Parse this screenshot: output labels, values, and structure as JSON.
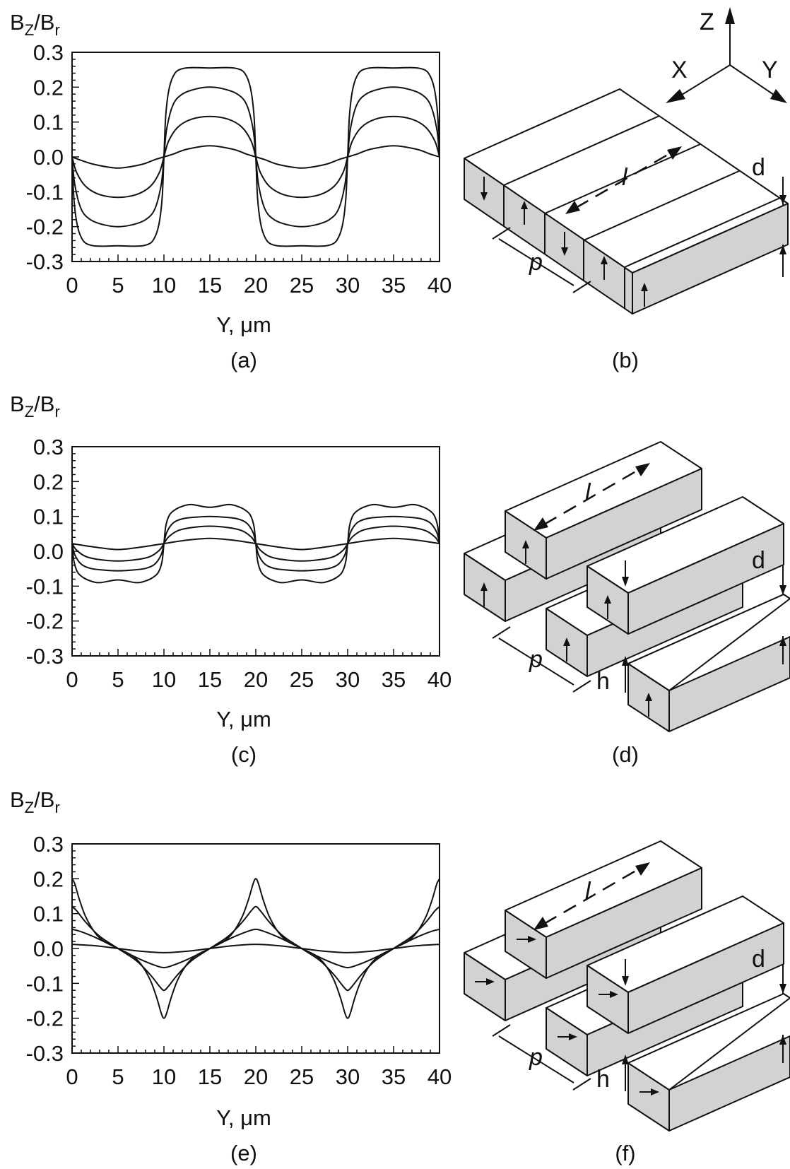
{
  "figure": {
    "panels": [
      {
        "tag": "(a)",
        "ylabel_main": "B",
        "ylabel_sub1": "Z",
        "ylabel_mid": "/B",
        "ylabel_sub2": "r",
        "xlabel": "Y, μm"
      },
      {
        "tag": "(c)",
        "ylabel_main": "B",
        "ylabel_sub1": "Z",
        "ylabel_mid": "/B",
        "ylabel_sub2": "r",
        "xlabel": "Y, μm"
      },
      {
        "tag": "(e)",
        "ylabel_main": "B",
        "ylabel_sub1": "Z",
        "ylabel_mid": "/B",
        "ylabel_sub2": "r",
        "xlabel": "Y, μm"
      }
    ],
    "diagrams": [
      {
        "tag": "(b)",
        "axes": {
          "z": "Z",
          "x": "X",
          "y": "Y"
        },
        "labels": {
          "l": "l",
          "p": "p",
          "d": "d"
        }
      },
      {
        "tag": "(d)",
        "labels": {
          "l": "l",
          "p": "p",
          "d": "d",
          "h": "h"
        }
      },
      {
        "tag": "(f)",
        "labels": {
          "l": "l",
          "p": "p",
          "d": "d",
          "h": "h"
        }
      }
    ]
  },
  "chart_data": [
    {
      "type": "line",
      "panel": "(a)",
      "xlabel": "Y, μm",
      "ylabel": "BZ/Br",
      "xlim": [
        0,
        40
      ],
      "ylim": [
        -0.3,
        0.3
      ],
      "xticks": [
        "0",
        "5",
        "10",
        "15",
        "20",
        "25",
        "30",
        "35",
        "40"
      ],
      "yticks": [
        "0.3",
        "0.2",
        "0.1",
        "0.0",
        "-0.1",
        "-0.2",
        "-0.3"
      ],
      "series": [
        {
          "x": [
            0,
            1,
            2.5,
            5,
            7.5,
            9,
            10,
            11,
            12.5,
            15,
            17.5,
            19,
            20,
            21,
            22.5,
            25,
            27.5,
            29,
            30,
            31,
            32.5,
            35,
            37.5,
            39,
            40
          ],
          "y": [
            0,
            -0.01,
            -0.022,
            -0.032,
            -0.022,
            -0.008,
            0,
            0.008,
            0.022,
            0.032,
            0.022,
            0.008,
            0,
            -0.008,
            -0.022,
            -0.032,
            -0.022,
            -0.008,
            0,
            0.008,
            0.022,
            0.032,
            0.022,
            0.008,
            0
          ]
        },
        {
          "x": [
            0,
            0.5,
            1.5,
            3,
            5,
            7,
            8.5,
            9.5,
            10,
            10.5,
            11.5,
            13,
            15,
            17,
            18.5,
            19.5,
            20,
            20.5,
            21.5,
            23,
            25,
            27,
            28.5,
            29.5,
            30,
            30.5,
            31.5,
            33,
            35,
            37,
            38.5,
            39.5,
            40
          ],
          "y": [
            0,
            -0.045,
            -0.085,
            -0.108,
            -0.116,
            -0.108,
            -0.085,
            -0.045,
            0,
            0.045,
            0.085,
            0.108,
            0.116,
            0.108,
            0.085,
            0.045,
            0,
            -0.045,
            -0.085,
            -0.108,
            -0.116,
            -0.108,
            -0.085,
            -0.045,
            0,
            0.045,
            0.085,
            0.108,
            0.116,
            0.108,
            0.085,
            0.045,
            0
          ]
        },
        {
          "x": [
            0,
            0.3,
            1,
            2,
            3.5,
            5,
            6.5,
            8,
            9,
            9.7,
            10,
            10.3,
            11,
            12,
            13.5,
            15,
            16.5,
            18,
            19,
            19.7,
            20,
            20.3,
            21,
            22,
            23.5,
            25,
            26.5,
            28,
            29,
            29.7,
            30,
            30.3,
            31,
            32,
            33.5,
            35,
            36.5,
            38,
            39,
            39.7,
            40
          ],
          "y": [
            0,
            -0.08,
            -0.15,
            -0.18,
            -0.195,
            -0.2,
            -0.195,
            -0.18,
            -0.15,
            -0.08,
            0,
            0.08,
            0.15,
            0.18,
            0.195,
            0.2,
            0.195,
            0.18,
            0.15,
            0.08,
            0,
            -0.08,
            -0.15,
            -0.18,
            -0.195,
            -0.2,
            -0.195,
            -0.18,
            -0.15,
            -0.08,
            0,
            0.08,
            0.15,
            0.18,
            0.195,
            0.2,
            0.195,
            0.18,
            0.15,
            0.08,
            0
          ]
        },
        {
          "x": [
            0,
            0.2,
            0.6,
            1.2,
            2,
            3,
            5,
            7,
            8,
            8.8,
            9.4,
            9.8,
            10,
            10.2,
            10.6,
            11.2,
            12,
            13,
            15,
            17,
            18,
            18.8,
            19.4,
            19.8,
            20,
            20.2,
            20.6,
            21.2,
            22,
            23,
            25,
            27,
            28,
            28.8,
            29.4,
            29.8,
            30,
            30.2,
            30.6,
            31.2,
            32,
            33,
            35,
            37,
            38,
            38.8,
            39.4,
            39.8,
            40
          ],
          "y": [
            0,
            -0.12,
            -0.2,
            -0.24,
            -0.253,
            -0.256,
            -0.255,
            -0.256,
            -0.253,
            -0.24,
            -0.2,
            -0.12,
            0,
            0.12,
            0.2,
            0.24,
            0.253,
            0.256,
            0.255,
            0.256,
            0.253,
            0.24,
            0.2,
            0.12,
            0,
            -0.12,
            -0.2,
            -0.24,
            -0.253,
            -0.256,
            -0.255,
            -0.256,
            -0.253,
            -0.24,
            -0.2,
            -0.12,
            0,
            0.12,
            0.2,
            0.24,
            0.253,
            0.256,
            0.255,
            0.256,
            0.253,
            0.24,
            0.2,
            0.12,
            0
          ]
        }
      ]
    },
    {
      "type": "line",
      "panel": "(c)",
      "xlabel": "Y, μm",
      "ylabel": "BZ/Br",
      "xlim": [
        0,
        40
      ],
      "ylim": [
        -0.3,
        0.3
      ],
      "xticks": [
        "0",
        "5",
        "10",
        "15",
        "20",
        "25",
        "30",
        "35",
        "40"
      ],
      "yticks": [
        "0.3",
        "0.2",
        "0.1",
        "0.0",
        "-0.1",
        "-0.2",
        "-0.3"
      ],
      "series": [
        {
          "x": [
            0,
            2.5,
            5,
            7.5,
            10,
            12.5,
            15,
            17.5,
            20,
            22.5,
            25,
            27.5,
            30,
            32.5,
            35,
            37.5,
            40
          ],
          "y": [
            0.022,
            0.012,
            0.005,
            0.012,
            0.022,
            0.032,
            0.037,
            0.032,
            0.022,
            0.012,
            0.005,
            0.012,
            0.022,
            0.032,
            0.037,
            0.032,
            0.022
          ]
        },
        {
          "x": [
            0,
            0.5,
            1.5,
            3,
            5,
            7,
            8.5,
            9.5,
            10,
            10.5,
            11.5,
            13,
            15,
            17,
            18.5,
            19.5,
            20,
            20.5,
            21.5,
            23,
            25,
            27,
            28.5,
            29.5,
            30,
            30.5,
            31.5,
            33,
            35,
            37,
            38.5,
            39.5,
            40
          ],
          "y": [
            0.022,
            0.003,
            -0.015,
            -0.024,
            -0.028,
            -0.024,
            -0.015,
            0.003,
            0.022,
            0.041,
            0.059,
            0.068,
            0.072,
            0.068,
            0.059,
            0.041,
            0.022,
            0.003,
            -0.015,
            -0.024,
            -0.028,
            -0.024,
            -0.015,
            0.003,
            0.022,
            0.041,
            0.059,
            0.068,
            0.072,
            0.068,
            0.059,
            0.041,
            0.022
          ]
        },
        {
          "x": [
            0,
            0.3,
            1,
            2,
            3.5,
            5,
            6.5,
            8,
            9,
            9.7,
            10,
            10.3,
            11,
            12,
            13.5,
            15,
            16.5,
            18,
            19,
            19.7,
            20,
            20.3,
            21,
            22,
            23.5,
            25,
            26.5,
            28,
            29,
            29.7,
            30,
            30.3,
            31,
            32,
            33.5,
            35,
            36.5,
            38,
            39,
            39.7,
            40
          ],
          "y": [
            0.022,
            -0.01,
            -0.037,
            -0.049,
            -0.054,
            -0.056,
            -0.054,
            -0.049,
            -0.037,
            -0.01,
            0.022,
            0.054,
            0.081,
            0.093,
            0.098,
            0.1,
            0.098,
            0.093,
            0.081,
            0.054,
            0.022,
            -0.01,
            -0.037,
            -0.049,
            -0.054,
            -0.056,
            -0.054,
            -0.049,
            -0.037,
            -0.01,
            0.022,
            0.054,
            0.081,
            0.093,
            0.098,
            0.1,
            0.098,
            0.093,
            0.081,
            0.054,
            0.022
          ]
        },
        {
          "x": [
            0,
            0.2,
            0.6,
            1.2,
            2,
            3,
            5,
            7,
            8,
            8.8,
            9.4,
            9.8,
            10,
            10.2,
            10.6,
            11.2,
            12,
            13,
            15,
            17,
            18,
            18.8,
            19.4,
            19.8,
            20,
            20.2,
            20.6,
            21.2,
            22,
            23,
            25,
            27,
            28,
            28.8,
            29.4,
            29.8,
            30,
            30.2,
            30.6,
            31.2,
            32,
            33,
            35,
            37,
            38,
            38.8,
            39.4,
            39.8,
            40
          ],
          "y": [
            0.022,
            -0.028,
            -0.06,
            -0.075,
            -0.085,
            -0.09,
            -0.082,
            -0.09,
            -0.085,
            -0.075,
            -0.06,
            -0.028,
            0.022,
            0.072,
            0.104,
            0.119,
            0.129,
            0.134,
            0.126,
            0.134,
            0.129,
            0.119,
            0.104,
            0.072,
            0.022,
            -0.028,
            -0.06,
            -0.075,
            -0.085,
            -0.09,
            -0.082,
            -0.09,
            -0.085,
            -0.075,
            -0.06,
            -0.028,
            0.022,
            0.072,
            0.104,
            0.119,
            0.129,
            0.134,
            0.126,
            0.134,
            0.129,
            0.119,
            0.104,
            0.072,
            0.022
          ]
        }
      ]
    },
    {
      "type": "line",
      "panel": "(e)",
      "xlabel": "Y, μm",
      "ylabel": "BZ/Br",
      "xlim": [
        0,
        40
      ],
      "ylim": [
        -0.3,
        0.3
      ],
      "xticks": [
        "0",
        "5",
        "10",
        "15",
        "20",
        "25",
        "30",
        "35",
        "40"
      ],
      "yticks": [
        "0.3",
        "0.2",
        "0.1",
        "0.0",
        "-0.1",
        "-0.2",
        "-0.3"
      ],
      "series": [
        {
          "x": [
            0,
            2.5,
            5,
            7.5,
            10,
            12.5,
            15,
            17.5,
            20,
            22.5,
            25,
            27.5,
            30,
            32.5,
            35,
            37.5,
            40
          ],
          "y": [
            0.012,
            0.008,
            0,
            -0.008,
            -0.012,
            -0.008,
            0,
            0.008,
            0.012,
            0.008,
            0,
            -0.008,
            -0.012,
            -0.008,
            0,
            0.008,
            0.012
          ]
        },
        {
          "x": [
            0,
            1,
            2.5,
            5,
            7.5,
            9,
            10,
            11,
            12.5,
            15,
            17.5,
            19,
            20,
            21,
            22.5,
            25,
            27.5,
            29,
            30,
            31,
            32.5,
            35,
            37.5,
            39,
            40
          ],
          "y": [
            0.055,
            0.048,
            0.032,
            0,
            -0.032,
            -0.048,
            -0.055,
            -0.048,
            -0.032,
            0,
            0.032,
            0.048,
            0.055,
            0.048,
            0.032,
            0,
            -0.032,
            -0.048,
            -0.055,
            -0.048,
            -0.032,
            0,
            0.032,
            0.048,
            0.055
          ]
        },
        {
          "x": [
            0,
            0.5,
            1.5,
            3,
            5,
            7,
            8.5,
            9.5,
            10,
            10.5,
            11.5,
            13,
            15,
            17,
            18.5,
            19.5,
            20,
            20.5,
            21.5,
            23,
            25,
            27,
            28.5,
            29.5,
            30,
            30.5,
            31.5,
            33,
            35,
            37,
            38.5,
            39.5,
            40
          ],
          "y": [
            0.12,
            0.108,
            0.075,
            0.035,
            0,
            -0.035,
            -0.075,
            -0.108,
            -0.12,
            -0.108,
            -0.075,
            -0.035,
            0,
            0.035,
            0.075,
            0.108,
            0.12,
            0.108,
            0.075,
            0.035,
            0,
            -0.035,
            -0.075,
            -0.108,
            -0.12,
            -0.108,
            -0.075,
            -0.035,
            0,
            0.035,
            0.075,
            0.108,
            0.12
          ]
        },
        {
          "x": [
            0,
            0.3,
            0.8,
            1.5,
            2.5,
            3.5,
            5,
            6.5,
            7.5,
            8.5,
            9.2,
            9.7,
            10,
            10.3,
            10.8,
            11.5,
            12.5,
            13.5,
            15,
            16.5,
            17.5,
            18.5,
            19.2,
            19.7,
            20,
            20.3,
            20.8,
            21.5,
            22.5,
            23.5,
            25,
            26.5,
            27.5,
            28.5,
            29.2,
            29.7,
            30,
            30.3,
            30.8,
            31.5,
            32.5,
            33.5,
            35,
            36.5,
            37.5,
            38.5,
            39.2,
            39.7,
            40
          ],
          "y": [
            0.2,
            0.185,
            0.14,
            0.09,
            0.045,
            0.02,
            0,
            -0.02,
            -0.045,
            -0.09,
            -0.14,
            -0.185,
            -0.2,
            -0.185,
            -0.14,
            -0.09,
            -0.045,
            -0.02,
            0,
            0.02,
            0.045,
            0.09,
            0.14,
            0.185,
            0.2,
            0.185,
            0.14,
            0.09,
            0.045,
            0.02,
            0,
            -0.02,
            -0.045,
            -0.09,
            -0.14,
            -0.185,
            -0.2,
            -0.185,
            -0.14,
            -0.09,
            -0.045,
            -0.02,
            0,
            0.02,
            0.045,
            0.09,
            0.14,
            0.185,
            0.2
          ]
        }
      ]
    }
  ]
}
